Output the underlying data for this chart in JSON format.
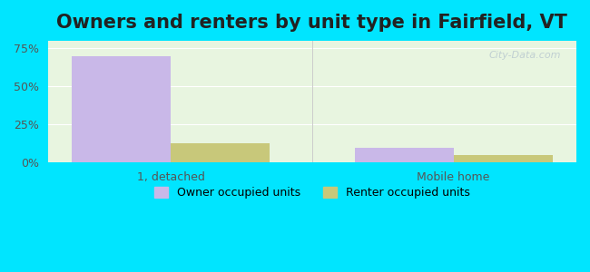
{
  "title": "Owners and renters by unit type in Fairfield, VT",
  "categories": [
    "1, detached",
    "Mobile home"
  ],
  "owner_values": [
    70.0,
    10.0
  ],
  "renter_values": [
    13.0,
    5.0
  ],
  "owner_color": "#c9b8e8",
  "renter_color": "#c8c87a",
  "yticks": [
    0,
    25,
    50,
    75
  ],
  "ytick_labels": [
    "0%",
    "25%",
    "50%",
    "75%"
  ],
  "ylim": [
    0,
    80
  ],
  "bg_color_left": "#e8f5e0",
  "bg_color_right": "#f5fdf5",
  "outer_bg": "#00e5ff",
  "watermark": "City-Data.com",
  "legend_owner": "Owner occupied units",
  "legend_renter": "Renter occupied units",
  "title_fontsize": 15,
  "bar_width": 0.35
}
